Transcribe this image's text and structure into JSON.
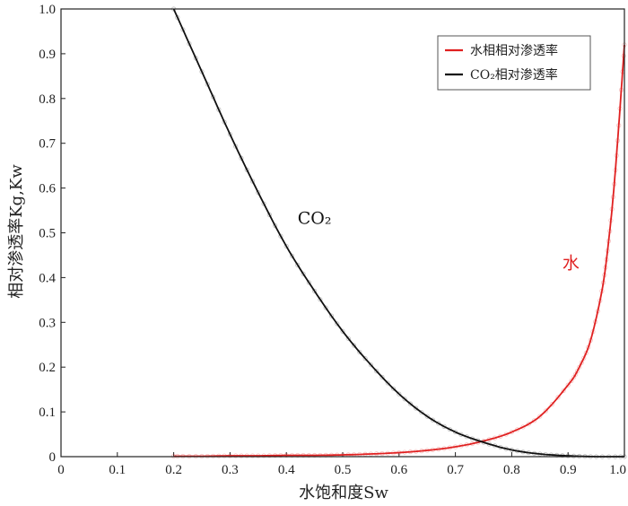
{
  "chart_data": {
    "type": "line",
    "xlabel": "水饱和度Sw",
    "ylabel": "相对渗透率Kg,Kw",
    "xlim": [
      0,
      1.0
    ],
    "ylim": [
      0,
      1.0
    ],
    "x_ticks": [
      "0",
      "0.1",
      "0.2",
      "0.3",
      "0.4",
      "0.5",
      "0.6",
      "0.7",
      "0.8",
      "0.9",
      "1.0"
    ],
    "y_ticks": [
      "0",
      "0.1",
      "0.2",
      "0.3",
      "0.4",
      "0.5",
      "0.6",
      "0.7",
      "0.8",
      "0.9",
      "1.0"
    ],
    "grid": false,
    "legend_position": "top-right",
    "series": [
      {
        "name": "水相相对渗透率",
        "color": "#e02020",
        "x": [
          0.2,
          0.25,
          0.3,
          0.35,
          0.4,
          0.45,
          0.5,
          0.55,
          0.6,
          0.65,
          0.7,
          0.75,
          0.8,
          0.85,
          0.9,
          0.92,
          0.94,
          0.96,
          0.97,
          0.98,
          0.99,
          1.0
        ],
        "y": [
          0.001,
          0.001,
          0.002,
          0.002,
          0.003,
          0.003,
          0.004,
          0.006,
          0.009,
          0.014,
          0.022,
          0.035,
          0.055,
          0.09,
          0.16,
          0.2,
          0.26,
          0.37,
          0.46,
          0.58,
          0.74,
          0.92
        ]
      },
      {
        "name": "CO₂相对渗透率",
        "color": "#111111",
        "x": [
          0.2,
          0.25,
          0.3,
          0.35,
          0.4,
          0.45,
          0.5,
          0.55,
          0.6,
          0.65,
          0.7,
          0.75,
          0.8,
          0.85,
          0.9,
          0.95,
          1.0
        ],
        "y": [
          1.0,
          0.86,
          0.72,
          0.59,
          0.47,
          0.37,
          0.28,
          0.205,
          0.14,
          0.09,
          0.055,
          0.032,
          0.015,
          0.006,
          0.002,
          0.0,
          0.0
        ]
      }
    ],
    "annotations": [
      {
        "text": "CO₂",
        "x": 0.45,
        "y": 0.52,
        "color": "#111111"
      },
      {
        "text": "水",
        "x": 0.905,
        "y": 0.42,
        "color": "#e02020"
      }
    ]
  }
}
